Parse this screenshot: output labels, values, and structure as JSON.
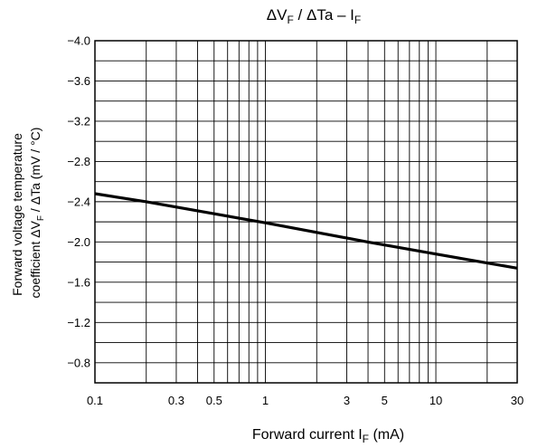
{
  "chart_data": {
    "type": "line",
    "title": {
      "main": "ΔV",
      "sub1": "F",
      "mid": " / ΔTa – I",
      "sub2": "F"
    },
    "xlabel": {
      "main": "Forward current   I",
      "sub": "F",
      "tail": "   (mA)"
    },
    "ylabel": {
      "line1": "Forward voltage temperature",
      "line2": {
        "prefix": "coefficient   ΔV",
        "sub": "F",
        "tail": " / ΔTa   (mV / °C)"
      }
    },
    "x_scale": "log",
    "xlim": [
      0.1,
      30
    ],
    "ylim": [
      -0.6,
      -4.0
    ],
    "y_axis_inverted": true,
    "grid": true,
    "x_ticks": [
      {
        "value": 0.1,
        "label": "0.1"
      },
      {
        "value": 0.3,
        "label": "0.3"
      },
      {
        "value": 0.5,
        "label": "0.5"
      },
      {
        "value": 1,
        "label": "1"
      },
      {
        "value": 3,
        "label": "3"
      },
      {
        "value": 5,
        "label": "5"
      },
      {
        "value": 10,
        "label": "10"
      },
      {
        "value": 30,
        "label": "30"
      }
    ],
    "x_minor_grid": [
      0.2,
      0.3,
      0.4,
      0.5,
      0.6,
      0.7,
      0.8,
      0.9,
      1,
      2,
      3,
      4,
      5,
      6,
      7,
      8,
      9,
      10,
      20
    ],
    "y_ticks": [
      {
        "value": -4.0,
        "label": "−4.0"
      },
      {
        "value": -3.6,
        "label": "−3.6"
      },
      {
        "value": -3.2,
        "label": "−3.2"
      },
      {
        "value": -2.8,
        "label": "−2.8"
      },
      {
        "value": -2.4,
        "label": "−2.4"
      },
      {
        "value": -2.0,
        "label": "−2.0"
      },
      {
        "value": -1.6,
        "label": "−1.6"
      },
      {
        "value": -1.2,
        "label": "−1.2"
      },
      {
        "value": -0.8,
        "label": "−0.8"
      }
    ],
    "y_grid": [
      -3.8,
      -3.6,
      -3.4,
      -3.2,
      -3.0,
      -2.8,
      -2.6,
      -2.4,
      -2.2,
      -2.0,
      -1.8,
      -1.6,
      -1.4,
      -1.2,
      -1.0,
      -0.8
    ],
    "series": [
      {
        "x": [
          0.1,
          0.2,
          1,
          4,
          10,
          30
        ],
        "y": [
          -2.48,
          -2.4,
          -2.19,
          -2.0,
          -1.88,
          -1.74
        ]
      }
    ],
    "colors": {
      "line": "#000000",
      "grid": "#000000",
      "frame": "#000000"
    }
  }
}
